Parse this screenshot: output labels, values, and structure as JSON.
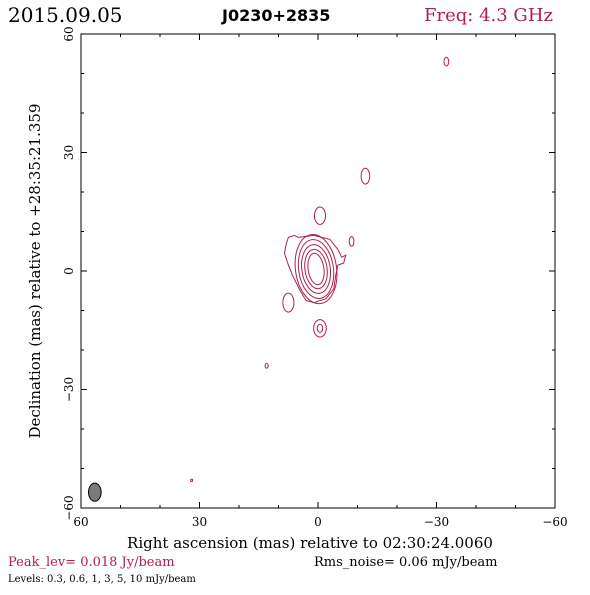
{
  "header": {
    "date": "2015.09.05",
    "source": "J0230+2835",
    "frequency": "Freq: 4.3 GHz"
  },
  "footer": {
    "peak": "Peak_lev=  0.018 Jy/beam",
    "rms": "Rms_noise= 0.06 mJy/beam",
    "levels": "Levels: 0.3, 0.6,   1,   3,   5,  10 mJy/beam"
  },
  "colors": {
    "contour": "#b0204a",
    "frame": "#000000",
    "beam_fill": "#7a7a7a"
  },
  "chart_data": {
    "type": "contour",
    "xlabel": "Right ascension (mas) relative to 02:30:24.0060",
    "ylabel": "Declination (mas) relative to +28:35:21.359",
    "xlim": [
      60,
      -60
    ],
    "ylim": [
      -60,
      60
    ],
    "x_ticks": [
      60,
      30,
      0,
      -30,
      -60
    ],
    "y_ticks": [
      -60,
      -30,
      0,
      30,
      60
    ],
    "x_tick_labels": [
      "60",
      "30",
      "0",
      "−30",
      "−60"
    ],
    "y_tick_labels": [
      "−60",
      "−30",
      "0",
      "30",
      "60"
    ],
    "levels_mJy": [
      0.3,
      0.6,
      1,
      3,
      5,
      10
    ],
    "peak_Jy_per_beam": 0.018,
    "rms_mJy_per_beam": 0.06,
    "core": {
      "center": [
        0.5,
        0.5
      ],
      "rings": [
        {
          "rx": 2.0,
          "ry": 4.0
        },
        {
          "rx": 2.8,
          "ry": 5.0
        },
        {
          "rx": 3.6,
          "ry": 6.2
        },
        {
          "rx": 4.4,
          "ry": 7.5
        },
        {
          "rx": 5.2,
          "ry": 8.8
        }
      ]
    },
    "outer_contour": [
      [
        5,
        8.5
      ],
      [
        1,
        9
      ],
      [
        -3,
        8
      ],
      [
        -5,
        5.5
      ],
      [
        -6,
        3.5
      ],
      [
        -7,
        4
      ],
      [
        -6.5,
        2
      ],
      [
        -5,
        1.5
      ],
      [
        -4.5,
        -1
      ],
      [
        -4,
        -4.5
      ],
      [
        -2,
        -7
      ],
      [
        1,
        -8
      ],
      [
        3,
        -7.5
      ],
      [
        4.5,
        -5
      ],
      [
        6.5,
        -1
      ],
      [
        7.5,
        1.5
      ],
      [
        8.5,
        4.5
      ],
      [
        8,
        7
      ],
      [
        7.5,
        8.5
      ],
      [
        6,
        9
      ]
    ],
    "blobs": [
      {
        "x": -32.5,
        "y": 53,
        "rx": 0.6,
        "ry": 1.1
      },
      {
        "x": -12,
        "y": 24,
        "rx": 1.1,
        "ry": 2.0
      },
      {
        "x": -0.5,
        "y": 14,
        "rx": 1.4,
        "ry": 2.2
      },
      {
        "x": -8.5,
        "y": 7.5,
        "rx": 0.6,
        "ry": 1.2
      },
      {
        "x": 7.5,
        "y": -8,
        "rx": 1.4,
        "ry": 2.4
      },
      {
        "x": -0.5,
        "y": -14.5,
        "rx": 1.6,
        "ry": 2.2
      },
      {
        "x": -0.5,
        "y": -14.5,
        "rx": 0.7,
        "ry": 1.0
      },
      {
        "x": 13,
        "y": -24,
        "rx": 0.4,
        "ry": 0.6
      },
      {
        "x": 32,
        "y": -53,
        "rx": 0.2,
        "ry": 0.3
      }
    ],
    "beam": {
      "x": 56.5,
      "y": -56,
      "rx": 1.6,
      "ry": 2.3
    }
  }
}
